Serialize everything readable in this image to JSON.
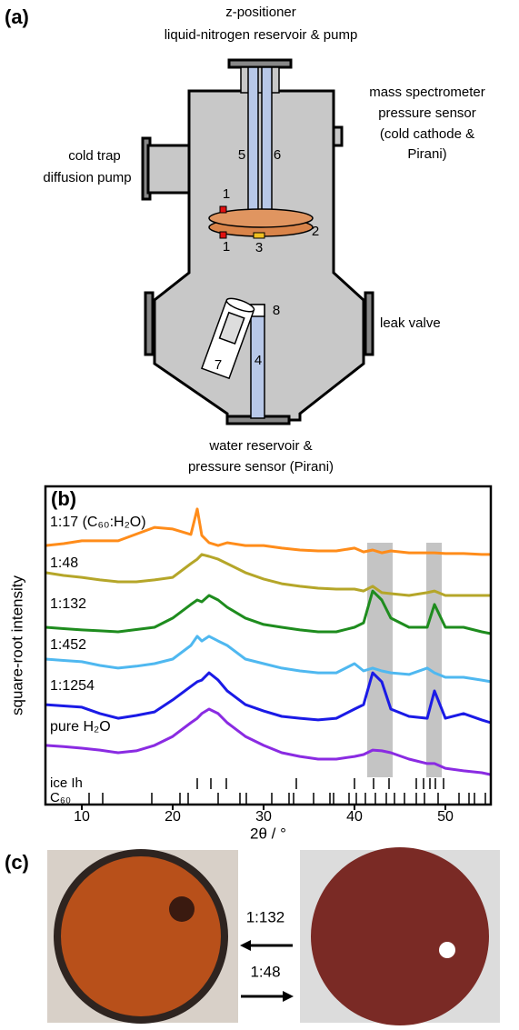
{
  "panel_a": {
    "label": "(a)",
    "texts": [
      "z-positioner",
      "liquid-nitrogen reservoir & pump",
      "mass spectrometer",
      "pressure sensor",
      "(cold cathode &",
      "Pirani)",
      "cold trap",
      "diffusion pump",
      "leak valve",
      "water reservoir &",
      "pressure sensor (Pirani)"
    ],
    "numbers": [
      "1",
      "1",
      "2",
      "3",
      "4",
      "5",
      "6",
      "7",
      "8"
    ]
  },
  "chart_data": {
    "type": "line",
    "label": "(b)",
    "xlabel": "2θ / °",
    "ylabel": "square-root intensity",
    "x": [
      6,
      8,
      10,
      12,
      14,
      16,
      18,
      20,
      22,
      22.7,
      23.2,
      24,
      25,
      26,
      28,
      30,
      32,
      34,
      36,
      38,
      40,
      41,
      42,
      43,
      44,
      46,
      48,
      48.8,
      50,
      52,
      54,
      55
    ],
    "xlim": [
      6,
      55
    ],
    "xticks": [
      10,
      20,
      30,
      40,
      50
    ],
    "ylim": [
      0,
      10
    ],
    "series": [
      {
        "name": "1:17 (C₆₀:H₂O)",
        "color": "#ff8c1a",
        "values": [
          8.14,
          8.2,
          8.29,
          8.29,
          8.29,
          8.5,
          8.71,
          8.66,
          8.49,
          9.29,
          8.46,
          8.23,
          8.14,
          8.23,
          8.14,
          8.14,
          8.06,
          8.0,
          7.97,
          7.97,
          8.06,
          7.94,
          8.0,
          7.91,
          7.97,
          7.91,
          7.91,
          7.91,
          7.89,
          7.89,
          7.86,
          7.86
        ]
      },
      {
        "name": "1:48",
        "color": "#b5a629",
        "values": [
          7.29,
          7.2,
          7.14,
          7.06,
          7.0,
          7.0,
          7.06,
          7.14,
          7.57,
          7.71,
          7.86,
          7.8,
          7.71,
          7.57,
          7.29,
          7.09,
          6.94,
          6.86,
          6.8,
          6.77,
          6.77,
          6.71,
          6.86,
          6.66,
          6.63,
          6.57,
          6.66,
          6.71,
          6.57,
          6.57,
          6.57,
          6.57
        ]
      },
      {
        "name": "1:132",
        "color": "#1e8c1e",
        "values": [
          5.57,
          5.53,
          5.49,
          5.46,
          5.43,
          5.5,
          5.57,
          5.86,
          6.29,
          6.43,
          6.37,
          6.57,
          6.43,
          6.2,
          5.86,
          5.66,
          5.57,
          5.49,
          5.43,
          5.43,
          5.57,
          5.71,
          6.71,
          6.43,
          5.86,
          5.57,
          5.57,
          6.29,
          5.57,
          5.57,
          5.43,
          5.37
        ]
      },
      {
        "name": "1:452",
        "color": "#4fb8f0",
        "values": [
          4.57,
          4.53,
          4.49,
          4.37,
          4.29,
          4.35,
          4.43,
          4.57,
          5.0,
          5.29,
          5.14,
          5.29,
          5.14,
          5.0,
          4.57,
          4.43,
          4.29,
          4.2,
          4.14,
          4.14,
          4.43,
          4.2,
          4.29,
          4.2,
          4.14,
          4.09,
          4.29,
          4.14,
          4.0,
          4.0,
          3.91,
          3.86
        ]
      },
      {
        "name": "1:1254",
        "color": "#1a1ae6",
        "values": [
          3.14,
          3.1,
          3.06,
          2.86,
          2.71,
          2.8,
          2.91,
          3.29,
          3.71,
          3.86,
          3.91,
          4.14,
          3.91,
          3.57,
          3.14,
          2.94,
          2.77,
          2.71,
          2.66,
          2.71,
          3.0,
          3.14,
          4.14,
          3.86,
          3.0,
          2.77,
          2.71,
          3.57,
          2.71,
          2.86,
          2.66,
          2.57
        ]
      },
      {
        "name": "pure H₂O",
        "color": "#8a2be2",
        "values": [
          1.86,
          1.82,
          1.77,
          1.71,
          1.63,
          1.69,
          1.86,
          2.14,
          2.57,
          2.71,
          2.86,
          3.0,
          2.86,
          2.57,
          2.14,
          1.86,
          1.63,
          1.51,
          1.43,
          1.43,
          1.51,
          1.57,
          1.71,
          1.69,
          1.63,
          1.43,
          1.29,
          1.29,
          1.14,
          1.06,
          1.0,
          0.94
        ]
      }
    ],
    "shaded_ranges": [
      [
        41.4,
        44.2
      ],
      [
        47.9,
        49.6
      ]
    ],
    "reference_ticks": [
      {
        "name": "ice Ih",
        "positions": [
          22.7,
          24.2,
          25.9,
          33.6,
          40.0,
          42.1,
          43.8,
          46.8,
          47.6,
          48.3,
          48.9,
          49.8
        ]
      },
      {
        "name": "C₆₀",
        "positions": [
          10.8,
          12.3,
          17.7,
          20.8,
          21.7,
          25.0,
          27.4,
          28.1,
          30.9,
          32.8,
          33.3,
          35.5,
          37.3,
          37.7,
          39.4,
          40.2,
          41.2,
          42.3,
          43.5,
          44.4,
          45.5,
          46.8,
          47.7,
          49.2,
          51.5,
          52.6,
          53.2,
          54.4
        ]
      }
    ]
  },
  "panel_c": {
    "label": "(c)",
    "arrow_labels": [
      "1:132",
      "1:48"
    ]
  }
}
